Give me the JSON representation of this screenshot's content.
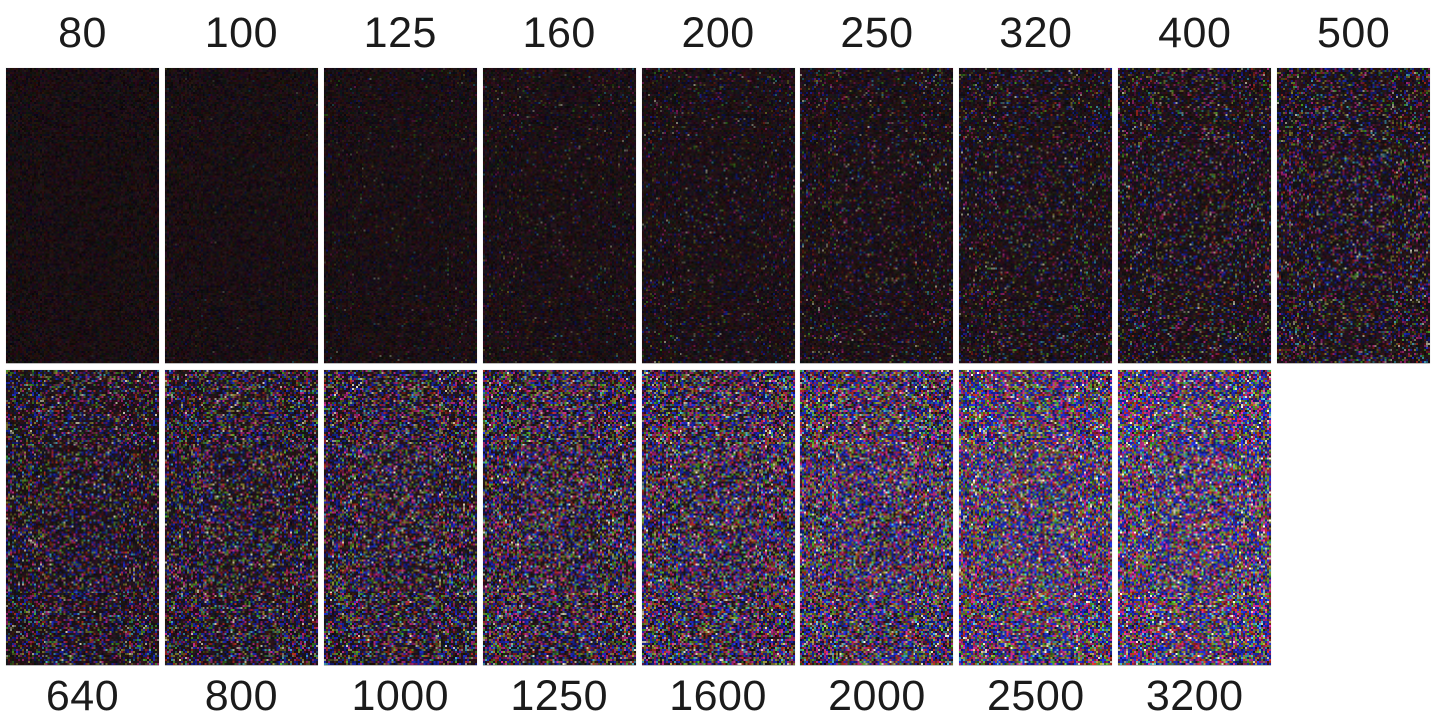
{
  "figure": {
    "rows": [
      {
        "label_position": "top",
        "panels": [
          {
            "iso": "80",
            "noise_level": 0
          },
          {
            "iso": "100",
            "noise_level": 1
          },
          {
            "iso": "125",
            "noise_level": 2
          },
          {
            "iso": "160",
            "noise_level": 3
          },
          {
            "iso": "200",
            "noise_level": 4
          },
          {
            "iso": "250",
            "noise_level": 5
          },
          {
            "iso": "320",
            "noise_level": 6
          },
          {
            "iso": "400",
            "noise_level": 7
          },
          {
            "iso": "500",
            "noise_level": 8
          }
        ]
      },
      {
        "label_position": "bottom",
        "panels": [
          {
            "iso": "640",
            "noise_level": 9
          },
          {
            "iso": "800",
            "noise_level": 10
          },
          {
            "iso": "1000",
            "noise_level": 11
          },
          {
            "iso": "1250",
            "noise_level": 12
          },
          {
            "iso": "1600",
            "noise_level": 13
          },
          {
            "iso": "2000",
            "noise_level": 14
          },
          {
            "iso": "2500",
            "noise_level": 15
          },
          {
            "iso": "3200",
            "noise_level": 16
          }
        ]
      }
    ]
  },
  "style": {
    "background": "#ffffff",
    "label_color": "#1b1b1b",
    "panel_base_color": "#140c0e",
    "noise_palette": {
      "blue": "#2434e6",
      "magenta": "#d9309a",
      "red": "#d23428",
      "olive": "#a8a03c",
      "lime": "#58c634",
      "cream": "#f2ecd2",
      "cyan": "#4ec2e2"
    }
  }
}
